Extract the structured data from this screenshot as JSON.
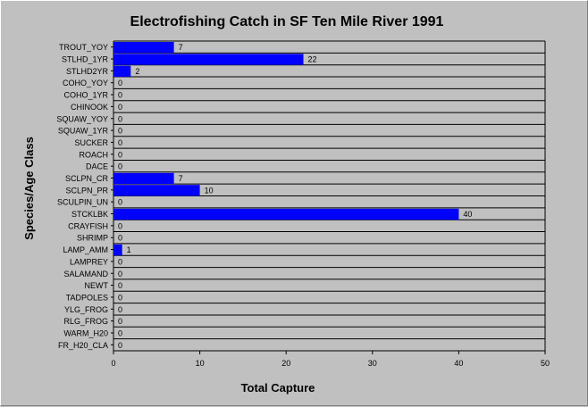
{
  "chart_data": {
    "type": "bar",
    "orientation": "horizontal",
    "title": "Electrofishing Catch in SF Ten Mile River 1991",
    "xlabel": "Total Capture",
    "ylabel": "Species/Age Class",
    "xlim": [
      0,
      50
    ],
    "xticks": [
      0,
      10,
      20,
      30,
      40,
      50
    ],
    "grid": "horizontal",
    "categories": [
      "TROUT_YOY",
      "STLHD_1YR",
      "STLHD2YR",
      "COHO_YOY",
      "COHO_1YR",
      "CHINOOK",
      "SQUAW_YOY",
      "SQUAW_1YR",
      "SUCKER",
      "ROACH",
      "DACE",
      "SCLPN_CR",
      "SCLPN_PR",
      "SCULPIN_UN",
      "STCKLBK",
      "CRAYFISH",
      "SHRIMP",
      "LAMP_AMM",
      "LAMPREY",
      "SALAMAND",
      "NEWT",
      "TADPOLES",
      "YLG_FROG",
      "RLG_FROG",
      "WARM_H20",
      "FR_H20_CLA"
    ],
    "values": [
      7,
      22,
      2,
      0,
      0,
      0,
      0,
      0,
      0,
      0,
      0,
      7,
      10,
      0,
      40,
      0,
      0,
      1,
      0,
      0,
      0,
      0,
      0,
      0,
      0,
      0
    ],
    "bar_color": "#0000ff",
    "background": "#c0c0c0"
  }
}
